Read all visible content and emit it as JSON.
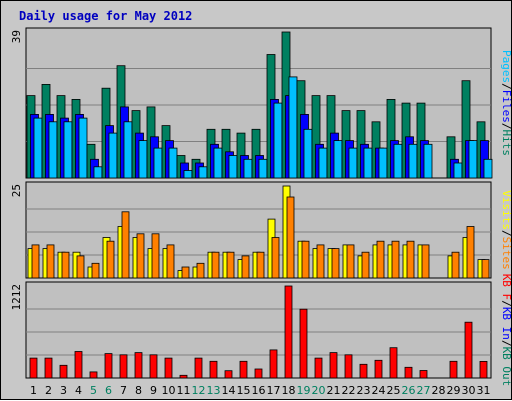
{
  "chart_data": {
    "title": "Daily usage for May 2012",
    "days": [
      "1",
      "2",
      "3",
      "4",
      "5",
      "6",
      "7",
      "8",
      "9",
      "10",
      "11",
      "12",
      "13",
      "14",
      "15",
      "16",
      "17",
      "18",
      "19",
      "20",
      "21",
      "22",
      "23",
      "24",
      "25",
      "26",
      "27",
      "28",
      "29",
      "30",
      "31"
    ],
    "weekend_days": [
      "5",
      "6",
      "12",
      "13",
      "19",
      "20",
      "26",
      "27"
    ],
    "panels": [
      {
        "id": "top",
        "type": "bar",
        "max_label": "39",
        "ymax": 39,
        "label_parts": [
          {
            "text": "Pages",
            "color": "#00c0ff"
          },
          {
            "text": "/",
            "color": "#000000"
          },
          {
            "text": "Files",
            "color": "#0000ff"
          },
          {
            "text": "/",
            "color": "#000000"
          },
          {
            "text": "Hits",
            "color": "#008060"
          }
        ],
        "series": [
          {
            "name": "Hits",
            "color": "#008060",
            "values": [
              22,
              25,
              22,
              21,
              9,
              24,
              30,
              18,
              19,
              14,
              6,
              5,
              13,
              13,
              12,
              13,
              33,
              39,
              26,
              22,
              22,
              18,
              18,
              15,
              21,
              20,
              20,
              0,
              11,
              26,
              15
            ]
          },
          {
            "name": "Files",
            "color": "#0000ff",
            "values": [
              17,
              17,
              16,
              17,
              5,
              14,
              19,
              12,
              11,
              10,
              4,
              4,
              9,
              7,
              6,
              6,
              21,
              22,
              17,
              9,
              12,
              10,
              9,
              8,
              10,
              11,
              10,
              0,
              5,
              10,
              10
            ]
          },
          {
            "name": "Pages",
            "color": "#00c0ff",
            "values": [
              16,
              15,
              15,
              16,
              3,
              12,
              15,
              10,
              8,
              8,
              2,
              3,
              8,
              6,
              5,
              5,
              20,
              27,
              13,
              8,
              10,
              8,
              8,
              8,
              9,
              9,
              9,
              0,
              4,
              10,
              5
            ]
          }
        ]
      },
      {
        "id": "mid",
        "type": "bar",
        "max_label": "25",
        "ymax": 25,
        "label_parts": [
          {
            "text": "Visits",
            "color": "#ffff00"
          },
          {
            "text": "/",
            "color": "#000000"
          },
          {
            "text": "Sites",
            "color": "#ff8000"
          }
        ],
        "series": [
          {
            "name": "Visits",
            "color": "#ffff00",
            "values": [
              8,
              8,
              7,
              7,
              3,
              11,
              14,
              11,
              8,
              8,
              2,
              3,
              7,
              7,
              5,
              7,
              16,
              25,
              10,
              8,
              8,
              9,
              6,
              9,
              9,
              9,
              9,
              0,
              6,
              11,
              5
            ]
          },
          {
            "name": "Sites",
            "color": "#ff8000",
            "values": [
              9,
              9,
              7,
              6,
              4,
              10,
              18,
              12,
              12,
              9,
              3,
              4,
              7,
              7,
              6,
              7,
              11,
              22,
              10,
              9,
              8,
              9,
              7,
              10,
              10,
              10,
              9,
              0,
              7,
              14,
              5
            ]
          }
        ]
      },
      {
        "id": "bot",
        "type": "bar",
        "max_label": "1212",
        "ymax": 1212,
        "label_parts": [
          {
            "text": "KB F",
            "color": "#ff0000"
          },
          {
            "text": "/",
            "color": "#000000"
          },
          {
            "text": "KB In",
            "color": "#0000ff"
          },
          {
            "text": "/",
            "color": "#000000"
          },
          {
            "text": "KB Out",
            "color": "#008060"
          }
        ],
        "series": [
          {
            "name": "KB F",
            "color": "#ff0000",
            "values": [
              262,
              262,
              167,
              349,
              81,
              321,
              306,
              335,
              306,
              262,
              36,
              262,
              220,
              96,
              220,
              118,
              370,
              1212,
              906,
              262,
              335,
              306,
              180,
              233,
              399,
              141,
              99,
              0,
              220,
              735,
              219
            ]
          }
        ]
      }
    ]
  }
}
